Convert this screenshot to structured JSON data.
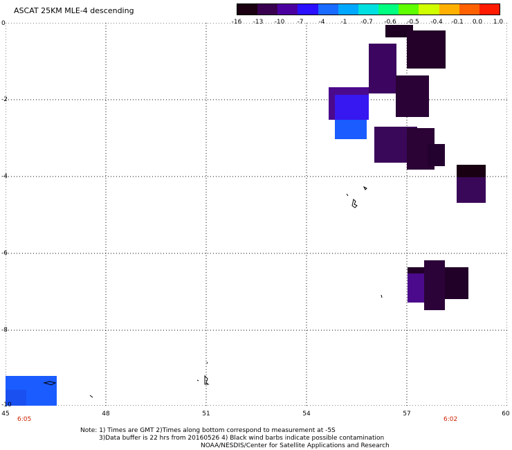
{
  "title": "ASCAT 25KM MLE-4 descending",
  "colorbar": {
    "ticks": [
      "-16",
      "-13",
      "-10",
      "-7",
      "-4",
      "-1",
      "-0.7",
      "-0.6",
      "-0.5",
      "-0.4",
      "-0.1",
      "0.0",
      "1.0"
    ],
    "colors": [
      "#1a0010",
      "#3a0050",
      "#4b00a0",
      "#2a10ff",
      "#1a6bff",
      "#00a8ff",
      "#00e0e0",
      "#00ff80",
      "#60ff00",
      "#d0ff00",
      "#ffb000",
      "#ff6000",
      "#ff1a00"
    ]
  },
  "axes": {
    "y_ticks": [
      "0",
      "-2",
      "-4",
      "-6",
      "-8",
      "-10"
    ],
    "x_ticks": [
      "45",
      "48",
      "51",
      "54",
      "57",
      "60"
    ]
  },
  "times": {
    "left": "6:05",
    "right": "6:02"
  },
  "notes": {
    "line1": "Note: 1) Times are GMT 2)Times along bottom correspond to measurement at -5S",
    "line2": "3)Data buffer is 22 hrs from 20160526 4) Black wind barbs indicate possible contamination",
    "line3": "NOAA/NESDIS/Center for Satellite Applications and Research"
  }
}
